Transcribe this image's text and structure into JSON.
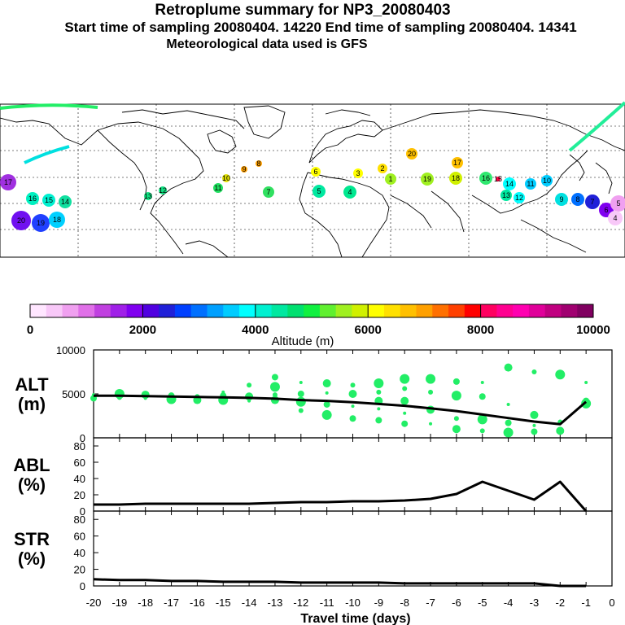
{
  "header": {
    "title": "Retroplume summary for NP3_20080403",
    "sampling_line": "Start time of sampling 20080404. 14220     End time of sampling 20080404. 14341",
    "met_line": "Meteorological data used is GFS"
  },
  "map": {
    "description_labels": [
      "20",
      "19",
      "18",
      "17",
      "16",
      "15",
      "14",
      "13",
      "12",
      "11",
      "10",
      "9",
      "8",
      "7",
      "6",
      "5",
      "4",
      "3",
      "2",
      "1"
    ]
  },
  "colorbar": {
    "title": "Altitude (m)",
    "tick_labels": [
      "0",
      "2000",
      "4000",
      "6000",
      "8000",
      "10000"
    ],
    "colors": [
      "#ffe6ff",
      "#f8c8f8",
      "#f0a0f0",
      "#e070e8",
      "#c040e0",
      "#a020e8",
      "#8000f0",
      "#5000e0",
      "#2020d8",
      "#0040ff",
      "#0070ff",
      "#00a0ff",
      "#00ccff",
      "#00ffff",
      "#00f0d0",
      "#00e8a0",
      "#00e070",
      "#10f040",
      "#60f030",
      "#a0f020",
      "#d0f000",
      "#ffff00",
      "#ffe000",
      "#ffc000",
      "#ffa000",
      "#ff7000",
      "#ff4000",
      "#ff0000",
      "#ff0060",
      "#ff0090",
      "#ff00b0",
      "#e0009a",
      "#c00080",
      "#a00070",
      "#800060"
    ]
  },
  "chart_data": [
    {
      "type": "line",
      "panel": "altitude",
      "ylabel": "ALT\n(m)",
      "ylabel_lines": [
        "ALT",
        "(m)"
      ],
      "ylim": [
        0,
        10000
      ],
      "y_ticks": [
        "10000",
        "5000",
        "0"
      ],
      "x": [
        -20,
        -19,
        -18,
        -17,
        -16,
        -15,
        -14,
        -13,
        -12,
        -11,
        -10,
        -9,
        -8,
        -7,
        -6,
        -5,
        -4,
        -3,
        -2,
        -1
      ],
      "values": [
        4800,
        4800,
        4750,
        4700,
        4650,
        4600,
        4550,
        4450,
        4300,
        4200,
        4050,
        3850,
        3650,
        3350,
        3050,
        2650,
        2250,
        1850,
        1550,
        4100
      ],
      "scatter_color": "#22ee66",
      "scatter": [
        [
          -20,
          4900
        ],
        [
          -20,
          4500
        ],
        [
          -19,
          5000
        ],
        [
          -19,
          4600
        ],
        [
          -18,
          4900
        ],
        [
          -18,
          4500
        ],
        [
          -17,
          4800
        ],
        [
          -17,
          4400
        ],
        [
          -16,
          4700
        ],
        [
          -16,
          4300
        ],
        [
          -15,
          5200
        ],
        [
          -15,
          4800
        ],
        [
          -15,
          4300
        ],
        [
          -14,
          6000
        ],
        [
          -14,
          4700
        ],
        [
          -14,
          4200
        ],
        [
          -13,
          6900
        ],
        [
          -13,
          5800
        ],
        [
          -13,
          4900
        ],
        [
          -13,
          4300
        ],
        [
          -12,
          6300
        ],
        [
          -12,
          5000
        ],
        [
          -12,
          4100
        ],
        [
          -12,
          3100
        ],
        [
          -11,
          6200
        ],
        [
          -11,
          5100
        ],
        [
          -11,
          3800
        ],
        [
          -11,
          2600
        ],
        [
          -10,
          6000
        ],
        [
          -10,
          5000
        ],
        [
          -10,
          3600
        ],
        [
          -10,
          2200
        ],
        [
          -9,
          6200
        ],
        [
          -9,
          5200
        ],
        [
          -9,
          4200
        ],
        [
          -9,
          3300
        ],
        [
          -9,
          2000
        ],
        [
          -8,
          6700
        ],
        [
          -8,
          5600
        ],
        [
          -8,
          4200
        ],
        [
          -8,
          2800
        ],
        [
          -8,
          1600
        ],
        [
          -7,
          6700
        ],
        [
          -7,
          5200
        ],
        [
          -7,
          3200
        ],
        [
          -7,
          1600
        ],
        [
          -6,
          6400
        ],
        [
          -6,
          4800
        ],
        [
          -6,
          2200
        ],
        [
          -6,
          1000
        ],
        [
          -5,
          6300
        ],
        [
          -5,
          4700
        ],
        [
          -5,
          2100
        ],
        [
          -5,
          800
        ],
        [
          -4,
          8000
        ],
        [
          -4,
          3800
        ],
        [
          -4,
          1700
        ],
        [
          -4,
          600
        ],
        [
          -3,
          7500
        ],
        [
          -3,
          2600
        ],
        [
          -3,
          1400
        ],
        [
          -3,
          700
        ],
        [
          -2,
          7200
        ],
        [
          -2,
          1800
        ],
        [
          -2,
          800
        ],
        [
          -1,
          6300
        ],
        [
          -1,
          4200
        ],
        [
          -1,
          3900
        ]
      ]
    },
    {
      "type": "line",
      "panel": "abl",
      "ylabel": "ABL\n(%)",
      "ylabel_lines": [
        "ABL",
        "(%)"
      ],
      "ylim": [
        0,
        90
      ],
      "y_ticks": [
        "80",
        "60",
        "40",
        "20",
        "0"
      ],
      "x": [
        -20,
        -19,
        -18,
        -17,
        -16,
        -15,
        -14,
        -13,
        -12,
        -11,
        -10,
        -9,
        -8,
        -7,
        -6,
        -5,
        -4,
        -3,
        -2,
        -1
      ],
      "values": [
        8,
        8,
        9,
        9,
        9,
        9,
        9,
        10,
        11,
        11,
        12,
        12,
        13,
        15,
        21,
        36,
        25,
        14,
        36,
        0
      ]
    },
    {
      "type": "line",
      "panel": "str",
      "ylabel": "STR\n(%)",
      "ylabel_lines": [
        "STR",
        "(%)"
      ],
      "ylim": [
        0,
        90
      ],
      "y_ticks": [
        "80",
        "60",
        "40",
        "20",
        "0"
      ],
      "x": [
        -20,
        -19,
        -18,
        -17,
        -16,
        -15,
        -14,
        -13,
        -12,
        -11,
        -10,
        -9,
        -8,
        -7,
        -6,
        -5,
        -4,
        -3,
        -2,
        -1
      ],
      "values": [
        8,
        7,
        7,
        6,
        6,
        5,
        5,
        5,
        4,
        4,
        4,
        4,
        3,
        3,
        3,
        3,
        3,
        3,
        0,
        0
      ]
    }
  ],
  "x_axis": {
    "tick_labels": [
      "-20",
      "-19",
      "-18",
      "-17",
      "-16",
      "-15",
      "-14",
      "-13",
      "-12",
      "-11",
      "-10",
      "-9",
      "-8",
      "-7",
      "-6",
      "-5",
      "-4",
      "-3",
      "-2",
      "-1",
      "0"
    ],
    "label": "Travel time (days)"
  }
}
